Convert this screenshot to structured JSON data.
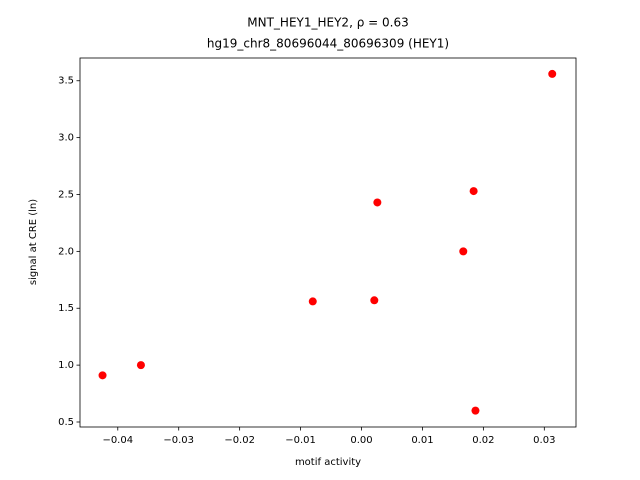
{
  "chart_data": {
    "type": "scatter",
    "title": "MNT_HEY1_HEY2, ρ = 0.63",
    "subtitle": "hg19_chr8_80696044_80696309 (HEY1)",
    "x_label": "motif activity",
    "y_label": "signal at CRE (ln)",
    "color": "#ff0000",
    "x": [
      -0.0425,
      -0.0362,
      -0.008,
      0.0021,
      0.0026,
      0.0167,
      0.0184,
      0.0187,
      0.0313
    ],
    "values": [
      0.91,
      1.0,
      1.56,
      1.57,
      2.43,
      2.0,
      2.53,
      0.6,
      3.56
    ],
    "xlim": [
      -0.0462,
      0.0352
    ],
    "ylim": [
      0.456,
      3.7
    ],
    "xticks": [
      {
        "value": -0.04,
        "label": "−0.04"
      },
      {
        "value": -0.03,
        "label": "−0.03"
      },
      {
        "value": -0.02,
        "label": "−0.02"
      },
      {
        "value": -0.01,
        "label": "−0.01"
      },
      {
        "value": 0,
        "label": "0.00"
      },
      0.01,
      0.02,
      0.03
    ],
    "yticks": [
      0.5,
      {
        "value": 1,
        "label": "1.0"
      },
      1.5,
      {
        "value": 2,
        "label": "2.0"
      },
      2.5,
      {
        "value": 3,
        "label": "3.0"
      },
      3.5
    ]
  }
}
